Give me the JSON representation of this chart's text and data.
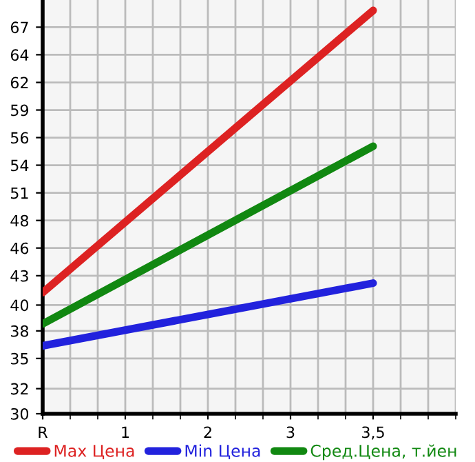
{
  "chart_data": {
    "type": "line",
    "categories": [
      "R",
      "1",
      "2",
      "3",
      "3,5"
    ],
    "series": [
      {
        "name": "Max Цена",
        "color": "#dd2222",
        "values": [
          41.6,
          null,
          null,
          null,
          68.6
        ]
      },
      {
        "name": "Min Цена",
        "color": "#2222dd",
        "values": [
          36.5,
          null,
          null,
          null,
          42.5
        ]
      },
      {
        "name": "Сред.Цена, т.йен",
        "color": "#118811",
        "values": [
          38.6,
          null,
          null,
          null,
          55.6
        ]
      }
    ],
    "ylim": [
      30,
      69.6
    ],
    "yticks": [
      30,
      {
        "value": 32.4,
        "label": "32"
      },
      {
        "value": 35.29,
        "label": "35"
      },
      {
        "value": 37.93,
        "label": "38"
      },
      {
        "value": 40.4,
        "label": "40"
      },
      {
        "value": 43.21,
        "label": "43"
      },
      {
        "value": 45.86,
        "label": "46"
      },
      {
        "value": 48.5,
        "label": "48"
      },
      {
        "value": 51.14,
        "label": "51"
      },
      {
        "value": 53.79,
        "label": "54"
      },
      {
        "value": 56.43,
        "label": "56"
      },
      {
        "value": 59.07,
        "label": "59"
      },
      {
        "value": 61.71,
        "label": "62"
      },
      {
        "value": 64.36,
        "label": "64"
      },
      67
    ],
    "grid": true,
    "legend": "bottom",
    "marker": "none",
    "line_style": "solid"
  }
}
